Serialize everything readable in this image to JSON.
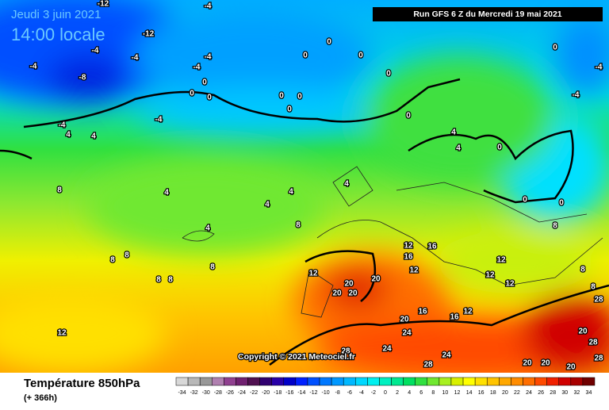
{
  "header": {
    "date": "Jeudi 3 juin 2021",
    "time": "14:00 locale",
    "run": "Run GFS 6 Z du Mercredi 19 mai 2021"
  },
  "copyright": "Copyright © 2021 Meteociel.fr",
  "footer": {
    "title": "Température 850hPa",
    "lead": "(+ 366h)"
  },
  "legend": {
    "values": [
      -34,
      -32,
      -30,
      -28,
      -26,
      -24,
      -22,
      -20,
      -18,
      -16,
      -14,
      -12,
      -10,
      -8,
      -6,
      -4,
      -2,
      0,
      2,
      4,
      6,
      8,
      10,
      12,
      14,
      16,
      18,
      20,
      22,
      24,
      26,
      28,
      30,
      32,
      34
    ],
    "colors": [
      "#d8d8d8",
      "#b8b8b8",
      "#989898",
      "#b080b0",
      "#904090",
      "#702070",
      "#501050",
      "#300070",
      "#2800a8",
      "#0000c8",
      "#0020ff",
      "#0050ff",
      "#0078ff",
      "#0098ff",
      "#00b8ff",
      "#00d8ff",
      "#00f0f0",
      "#00f0c0",
      "#00e890",
      "#00e060",
      "#30e040",
      "#70e830",
      "#a8f020",
      "#d8f000",
      "#ffff00",
      "#ffe000",
      "#ffc400",
      "#ffa800",
      "#ff8c00",
      "#ff6e00",
      "#ff4a00",
      "#f02000",
      "#d00000",
      "#a80000",
      "#700000"
    ]
  },
  "contour_labels": [
    -12,
    -12,
    -4,
    -4,
    -8,
    -4,
    -4,
    -4,
    -4,
    0,
    0,
    0,
    -4,
    -4,
    4,
    4,
    0,
    0,
    0,
    0,
    0,
    0,
    0,
    0,
    0,
    -4,
    -4,
    4,
    4,
    0,
    0,
    0,
    4,
    4,
    4,
    4,
    8,
    8,
    8,
    8,
    8,
    8,
    8,
    12,
    12,
    12,
    16,
    16,
    20,
    20,
    20,
    20,
    20,
    16,
    24,
    24,
    28,
    28,
    24,
    28,
    20,
    28,
    20,
    20,
    20,
    28,
    12,
    8,
    8,
    12,
    12,
    12,
    12,
    16,
    4,
    8
  ]
}
